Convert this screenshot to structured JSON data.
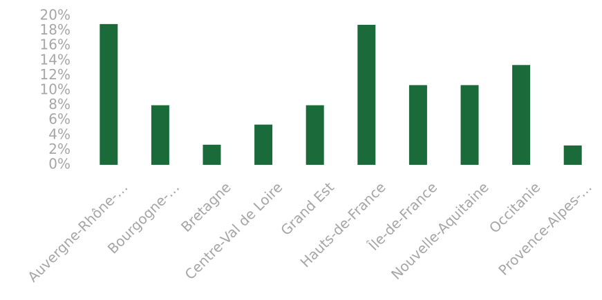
{
  "chart_data": {
    "type": "bar",
    "categories": [
      "Auvergne-Rhône-…",
      "Bourgogne-…",
      "Bretagne",
      "Centre-Val de Loire",
      "Grand Est",
      "Hauts-de-France",
      "Île-de-France",
      "Nouvelle-Aquitaine",
      "Occitanie",
      "Provence-Alpes-…"
    ],
    "values": [
      18.9,
      8.0,
      2.7,
      5.4,
      8.0,
      18.8,
      10.7,
      10.7,
      13.4,
      2.6
    ],
    "ylim": [
      0,
      20
    ],
    "yticks": [
      0,
      2,
      4,
      6,
      8,
      10,
      12,
      14,
      16,
      18,
      20
    ],
    "ytick_labels": [
      "0%",
      "2%",
      "4%",
      "6%",
      "8%",
      "10%",
      "12%",
      "14%",
      "16%",
      "18%",
      "20%"
    ],
    "bar_color": "#1b6b3a",
    "label_color": "#a6a6a6",
    "grid": false,
    "legend": "none"
  }
}
